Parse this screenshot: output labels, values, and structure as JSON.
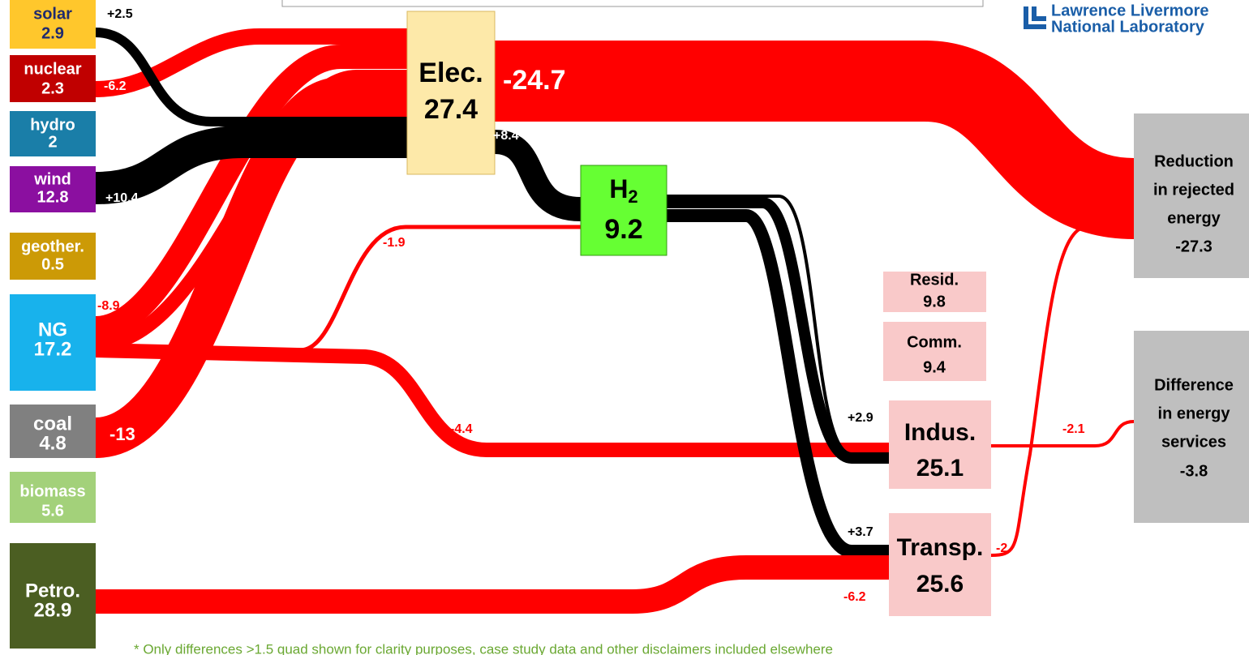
{
  "logo": [
    "Lawrence Livermore",
    "National Laboratory"
  ],
  "sources": [
    {
      "label": "solar",
      "value": 2.9
    },
    {
      "label": "nuclear",
      "value": 2.3
    },
    {
      "label": "hydro",
      "value": 2
    },
    {
      "label": "wind",
      "value": 12.8
    },
    {
      "label": "geother.",
      "value": 0.5
    },
    {
      "label": "NG",
      "value": 17.2
    },
    {
      "label": "coal",
      "value": 4.8
    },
    {
      "label": "biomass",
      "value": 5.6
    },
    {
      "label": "Petro.",
      "value": 28.9
    }
  ],
  "hubs": [
    {
      "label": "Elec.",
      "value": 27.4
    },
    {
      "label": "H",
      "subscript": "2",
      "value": 9.2
    }
  ],
  "sectors": [
    {
      "label": "Resid.",
      "value": 9.8
    },
    {
      "label": "Comm.",
      "value": 9.4
    },
    {
      "label": "Indus.",
      "value": 25.1
    },
    {
      "label": "Transp.",
      "value": 25.6
    }
  ],
  "outcomes": [
    {
      "label_lines": [
        "Reduction",
        "in rejected",
        "energy"
      ],
      "value": -27.3
    },
    {
      "label_lines": [
        "Difference",
        "in energy",
        "services"
      ],
      "value": -3.8
    }
  ],
  "flows": [
    "+2.5",
    "-6.2",
    "+10.4",
    "-8.9",
    "-13",
    "-24.7",
    "+8.4",
    "-1.9",
    "-4.4",
    "+2.9",
    "+3.7",
    "-6.2",
    "-2",
    "-2.1"
  ],
  "footnote": "* Only differences >1.5 quad shown for clarity purposes, case study data and other disclaimers included elsewhere"
}
